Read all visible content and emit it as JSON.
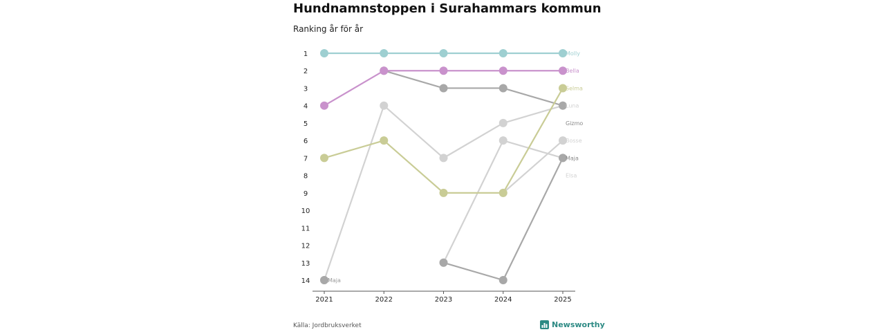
{
  "chart_data": {
    "type": "line",
    "title": "Hundnamnstoppen i Surahammars kommun",
    "subtitle": "Ranking år för år",
    "x": [
      "2021",
      "2022",
      "2023",
      "2024",
      "2025"
    ],
    "ylim": [
      1,
      14
    ],
    "y_ticks": [
      "1",
      "2",
      "3",
      "4",
      "5",
      "6",
      "7",
      "8",
      "9",
      "10",
      "11",
      "12",
      "13",
      "14"
    ],
    "y_reversed": true,
    "series": [
      {
        "name": "Molly",
        "color": "#9ecfd1",
        "values": [
          1,
          1,
          1,
          1,
          1
        ]
      },
      {
        "name": "Bella",
        "color": "#c992cc",
        "values": [
          4,
          2,
          2,
          2,
          2
        ]
      },
      {
        "name": "Selma",
        "color": "#c9cc96",
        "values": [
          7,
          6,
          9,
          9,
          3
        ]
      },
      {
        "name": "Luna",
        "color": "#d2d2d2",
        "values": [
          14,
          4,
          7,
          5,
          4
        ]
      },
      {
        "name": "Gizmo",
        "color": "#a8a8a8",
        "values": [
          null,
          2,
          3,
          3,
          4
        ]
      },
      {
        "name": "Bosse",
        "color": "#d2d2d2",
        "values": [
          null,
          null,
          13,
          6,
          7
        ]
      },
      {
        "name": "Maja",
        "color": "#a8a8a8",
        "values": [
          14,
          null,
          13,
          14,
          7
        ]
      },
      {
        "name": "Elsa",
        "color": "#d2d2d2",
        "values": [
          null,
          null,
          null,
          9,
          6
        ]
      }
    ],
    "end_labels": [
      {
        "name": "Molly",
        "rank": 1,
        "color": "#9ecfd1"
      },
      {
        "name": "Bella",
        "rank": 2,
        "color": "#c992cc"
      },
      {
        "name": "Selma",
        "rank": 3,
        "color": "#c9cc96"
      },
      {
        "name": "Luna",
        "rank": 4,
        "color": "#d2d2d2"
      },
      {
        "name": "Gizmo",
        "rank": 5,
        "color": "#888888"
      },
      {
        "name": "Bosse",
        "rank": 6,
        "color": "#d2d2d2"
      },
      {
        "name": "Maja",
        "rank": 7,
        "color": "#888888"
      },
      {
        "name": "Elsa",
        "rank": 8,
        "color": "#d2d2d2"
      }
    ],
    "start_labels": [
      {
        "name": "Maja",
        "rank": 14,
        "x_index": 0,
        "color": "#999999"
      }
    ]
  },
  "footer": {
    "source": "Källa: Jordbruksverket",
    "brand": "Newsworthy",
    "brand_color": "#2d8a84"
  }
}
